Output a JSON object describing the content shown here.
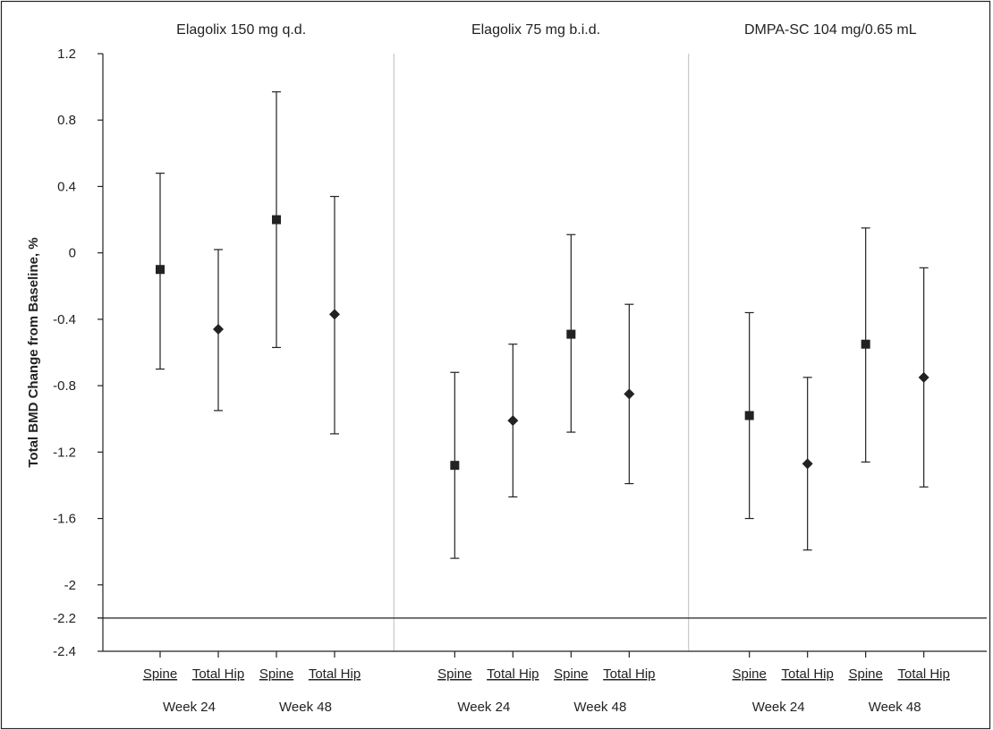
{
  "chart_data": {
    "type": "scatter",
    "ylabel": "Total BMD Change from Baseline, %",
    "ylim": [
      -2.4,
      1.2
    ],
    "yticks": [
      1.2,
      0.8,
      0.4,
      0,
      -0.4,
      -0.8,
      -1.2,
      -1.6,
      -2,
      -2.2,
      -2.4
    ],
    "reference_line": -2.2,
    "grid": false,
    "panels": [
      {
        "title": "Elagolix 150 mg q.d.",
        "groups": [
          {
            "label": "Week 24",
            "points": [
              {
                "category": "Spine",
                "marker": "square",
                "value": -0.1,
                "lower": -0.7,
                "upper": 0.48
              },
              {
                "category": "Total Hip",
                "marker": "diamond",
                "value": -0.46,
                "lower": -0.95,
                "upper": 0.02
              }
            ]
          },
          {
            "label": "Week 48",
            "points": [
              {
                "category": "Spine",
                "marker": "square",
                "value": 0.2,
                "lower": -0.57,
                "upper": 0.97
              },
              {
                "category": "Total Hip",
                "marker": "diamond",
                "value": -0.37,
                "lower": -1.09,
                "upper": 0.34
              }
            ]
          }
        ]
      },
      {
        "title": "Elagolix 75 mg b.i.d.",
        "groups": [
          {
            "label": "Week 24",
            "points": [
              {
                "category": "Spine",
                "marker": "square",
                "value": -1.28,
                "lower": -1.84,
                "upper": -0.72
              },
              {
                "category": "Total Hip",
                "marker": "diamond",
                "value": -1.01,
                "lower": -1.47,
                "upper": -0.55
              }
            ]
          },
          {
            "label": "Week 48",
            "points": [
              {
                "category": "Spine",
                "marker": "square",
                "value": -0.49,
                "lower": -1.08,
                "upper": 0.11
              },
              {
                "category": "Total Hip",
                "marker": "diamond",
                "value": -0.85,
                "lower": -1.39,
                "upper": -0.31
              }
            ]
          }
        ]
      },
      {
        "title": "DMPA-SC 104 mg/0.65 mL",
        "groups": [
          {
            "label": "Week 24",
            "points": [
              {
                "category": "Spine",
                "marker": "square",
                "value": -0.98,
                "lower": -1.6,
                "upper": -0.36
              },
              {
                "category": "Total Hip",
                "marker": "diamond",
                "value": -1.27,
                "lower": -1.79,
                "upper": -0.75
              }
            ]
          },
          {
            "label": "Week 48",
            "points": [
              {
                "category": "Spine",
                "marker": "square",
                "value": -0.55,
                "lower": -1.26,
                "upper": 0.15
              },
              {
                "category": "Total Hip",
                "marker": "diamond",
                "value": -0.75,
                "lower": -1.41,
                "upper": -0.09
              }
            ]
          }
        ]
      }
    ]
  }
}
